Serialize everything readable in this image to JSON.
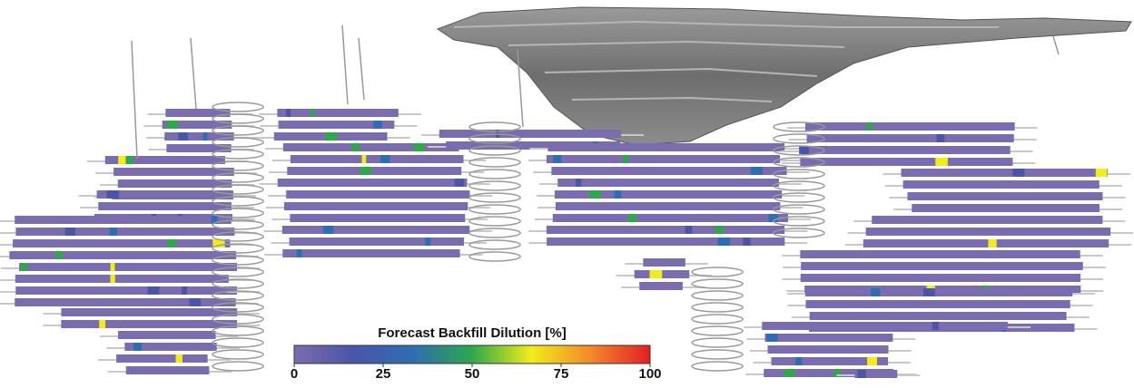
{
  "colorbar": {
    "title": "Forecast Backfill Dilution [%]",
    "range": [
      0,
      100
    ],
    "ticks": [
      0,
      25,
      50,
      75,
      100
    ],
    "colors": [
      "#7b6cb0",
      "#4a55a8",
      "#2f6db3",
      "#2ea84a",
      "#f2ec1a",
      "#f3892a",
      "#e51e25"
    ]
  }
}
